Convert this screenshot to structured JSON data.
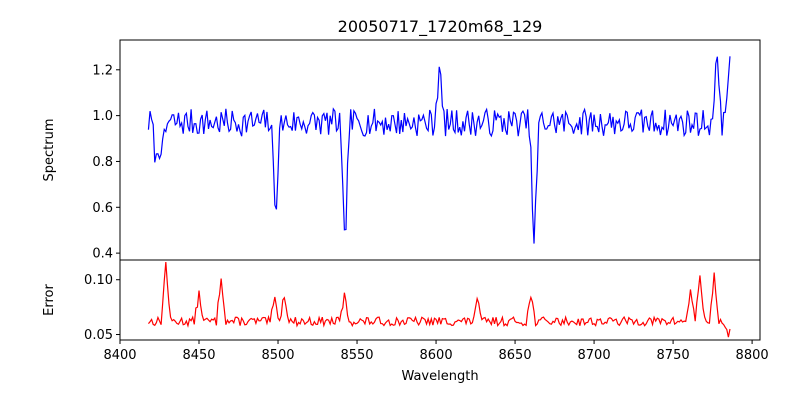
{
  "chart_data": [
    {
      "type": "line",
      "title": "20050717_1720m68_129",
      "xlabel": "",
      "ylabel": "Spectrum",
      "xlim": [
        8400,
        8805
      ],
      "ylim": [
        0.37,
        1.33
      ],
      "yticks": [
        0.4,
        0.6,
        0.8,
        1.0,
        1.2
      ],
      "ytick_labels": [
        "0.4",
        "0.6",
        "0.8",
        "1.0",
        "1.2"
      ],
      "grid": false,
      "series": [
        {
          "color": "#0000ff",
          "continuum": {
            "x_start": 8418,
            "x_end": 8786,
            "step": 1,
            "base": 0.97,
            "noise_amp": 0.06,
            "seed": 7
          },
          "features": [
            {
              "x": 8498.5,
              "y": 0.58
            },
            {
              "x": 8542.2,
              "y": 0.41
            },
            {
              "x": 8662.1,
              "y": 0.42
            },
            {
              "x": 8602,
              "y": 1.21
            },
            {
              "x": 8778,
              "y": 1.27
            },
            {
              "x": 8786,
              "y": 1.3
            },
            {
              "x": 8423,
              "y": 0.79
            },
            {
              "x": 8427,
              "y": 0.84
            }
          ]
        }
      ]
    },
    {
      "type": "line",
      "title": "",
      "xlabel": "Wavelength",
      "ylabel": "Error",
      "xlim": [
        8400,
        8805
      ],
      "ylim": [
        0.045,
        0.118
      ],
      "yticks": [
        0.05,
        0.1
      ],
      "ytick_labels": [
        "0.05",
        "0.10"
      ],
      "xticks": [
        8400,
        8450,
        8500,
        8550,
        8600,
        8650,
        8700,
        8750,
        8800
      ],
      "xtick_labels": [
        "8400",
        "8450",
        "8500",
        "8550",
        "8600",
        "8650",
        "8700",
        "8750",
        "8800"
      ],
      "grid": false,
      "series": [
        {
          "color": "#ff0000",
          "continuum": {
            "x_start": 8418,
            "x_end": 8786,
            "step": 1,
            "base": 0.062,
            "noise_amp": 0.004,
            "seed": 13
          },
          "features": [
            {
              "x": 8429,
              "y": 0.115
            },
            {
              "x": 8450,
              "y": 0.087
            },
            {
              "x": 8464,
              "y": 0.103
            },
            {
              "x": 8498,
              "y": 0.082
            },
            {
              "x": 8504,
              "y": 0.087
            },
            {
              "x": 8542,
              "y": 0.085
            },
            {
              "x": 8626,
              "y": 0.081
            },
            {
              "x": 8660,
              "y": 0.085
            },
            {
              "x": 8761,
              "y": 0.09
            },
            {
              "x": 8767,
              "y": 0.105
            },
            {
              "x": 8776,
              "y": 0.103
            },
            {
              "x": 8785,
              "y": 0.046
            }
          ]
        }
      ]
    }
  ]
}
